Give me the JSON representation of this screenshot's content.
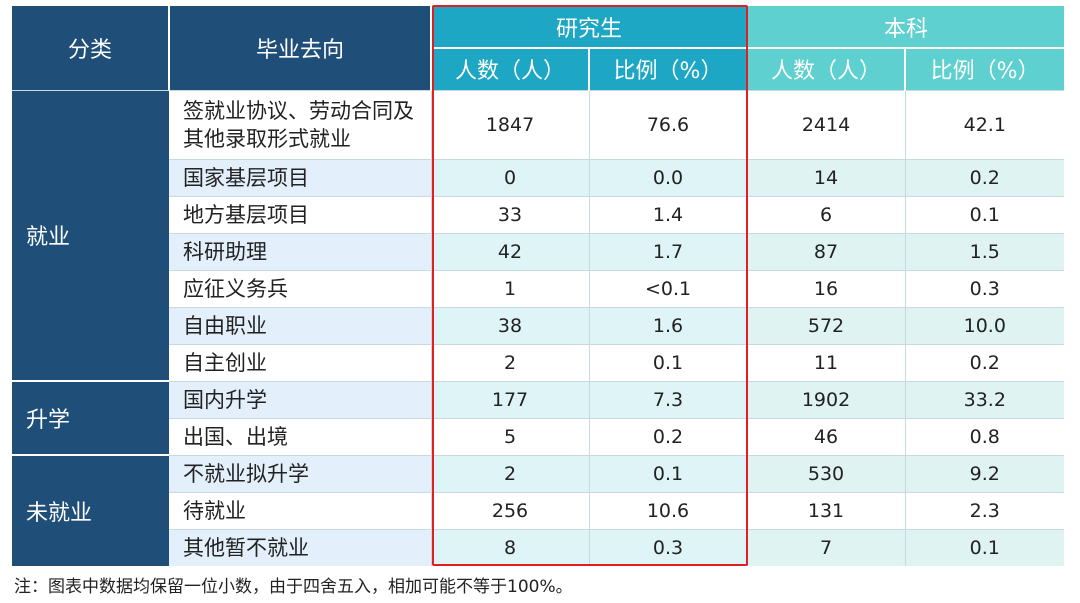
{
  "headers": {
    "category": "分类",
    "destination": "毕业去向",
    "graduate": "研究生",
    "undergraduate": "本科",
    "count": "人数（人）",
    "ratio": "比例（%）"
  },
  "groups": [
    {
      "name": "就业",
      "rows": [
        {
          "dest": "签就业协议、劳动合同及其他录取形式就业",
          "g_count": "1847",
          "g_ratio": "76.6",
          "u_count": "2414",
          "u_ratio": "42.1"
        },
        {
          "dest": "国家基层项目",
          "g_count": "0",
          "g_ratio": "0.0",
          "u_count": "14",
          "u_ratio": "0.2"
        },
        {
          "dest": "地方基层项目",
          "g_count": "33",
          "g_ratio": "1.4",
          "u_count": "6",
          "u_ratio": "0.1"
        },
        {
          "dest": "科研助理",
          "g_count": "42",
          "g_ratio": "1.7",
          "u_count": "87",
          "u_ratio": "1.5"
        },
        {
          "dest": "应征义务兵",
          "g_count": "1",
          "g_ratio": "<0.1",
          "u_count": "16",
          "u_ratio": "0.3"
        },
        {
          "dest": "自由职业",
          "g_count": "38",
          "g_ratio": "1.6",
          "u_count": "572",
          "u_ratio": "10.0"
        },
        {
          "dest": "自主创业",
          "g_count": "2",
          "g_ratio": "0.1",
          "u_count": "11",
          "u_ratio": "0.2"
        }
      ]
    },
    {
      "name": "升学",
      "rows": [
        {
          "dest": "国内升学",
          "g_count": "177",
          "g_ratio": "7.3",
          "u_count": "1902",
          "u_ratio": "33.2"
        },
        {
          "dest": "出国、出境",
          "g_count": "5",
          "g_ratio": "0.2",
          "u_count": "46",
          "u_ratio": "0.8"
        }
      ]
    },
    {
      "name": "未就业",
      "rows": [
        {
          "dest": "不就业拟升学",
          "g_count": "2",
          "g_ratio": "0.1",
          "u_count": "530",
          "u_ratio": "9.2"
        },
        {
          "dest": "待就业",
          "g_count": "256",
          "g_ratio": "10.6",
          "u_count": "131",
          "u_ratio": "2.3"
        },
        {
          "dest": "其他暂不就业",
          "g_count": "8",
          "g_ratio": "0.3",
          "u_count": "7",
          "u_ratio": "0.1"
        }
      ]
    }
  ],
  "note": "注：图表中数据均保留一位小数，由于四舍五入，相加可能不等于100%。",
  "colors": {
    "header_dark": "#1f4e79",
    "header_graduate": "#1ea7c4",
    "header_undergraduate": "#5ed0d0",
    "highlight_box": "#e02020"
  }
}
